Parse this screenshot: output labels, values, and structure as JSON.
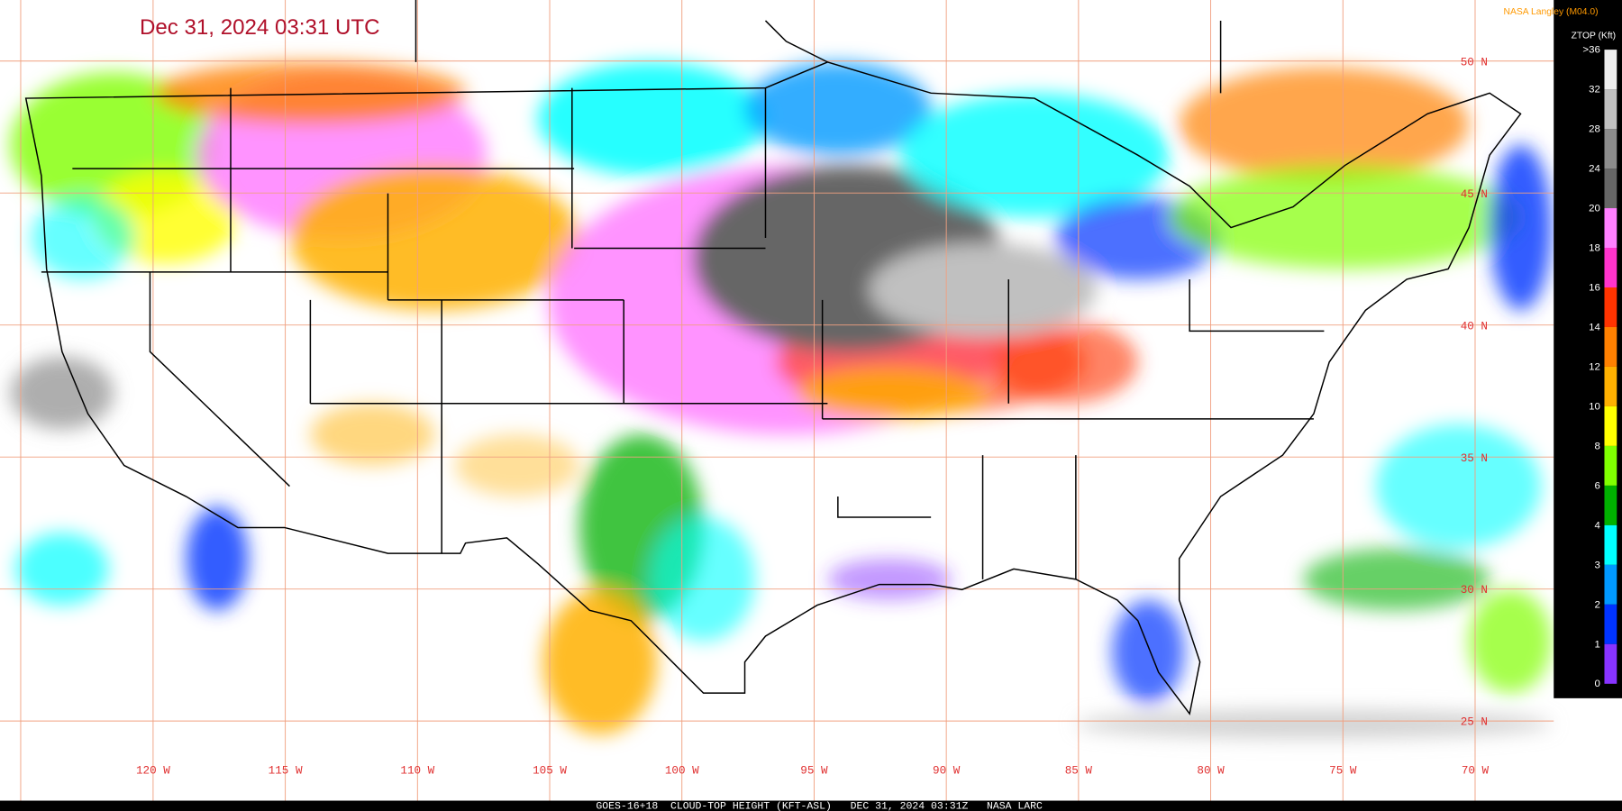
{
  "header": {
    "title": "Dec 31, 2024 03:31 UTC",
    "credit": "NASA Langley (M04.0)"
  },
  "colorbar": {
    "title": "ZTOP (Kft)",
    "labels": [
      ">36",
      32,
      28,
      24,
      20,
      18,
      16,
      14,
      12,
      10,
      8,
      6,
      4,
      3,
      2,
      1,
      0
    ],
    "colors": [
      "#eeeeee",
      "#c0c0c0",
      "#8c8c8c",
      "#666666",
      "#ff80ff",
      "#ff33cc",
      "#ff3300",
      "#ff8000",
      "#ffb000",
      "#ffff00",
      "#80ff00",
      "#00b000",
      "#00ffff",
      "#0099ff",
      "#0033ff",
      "#8833ff"
    ]
  },
  "map": {
    "longitudes": [
      "120 W",
      "115 W",
      "110 W",
      "105 W",
      "100 W",
      "95 W",
      "90 W",
      "85 W",
      "80 W",
      "75 W",
      "70 W"
    ],
    "latitudes": [
      "50 N",
      "45 N",
      "40 N",
      "35 N",
      "30 N",
      "25 N"
    ]
  },
  "footer": {
    "text": "GOES-16+18  CLOUD-TOP HEIGHT (KFT-ASL)   DEC 31, 2024 03:31Z   NASA LARC"
  }
}
